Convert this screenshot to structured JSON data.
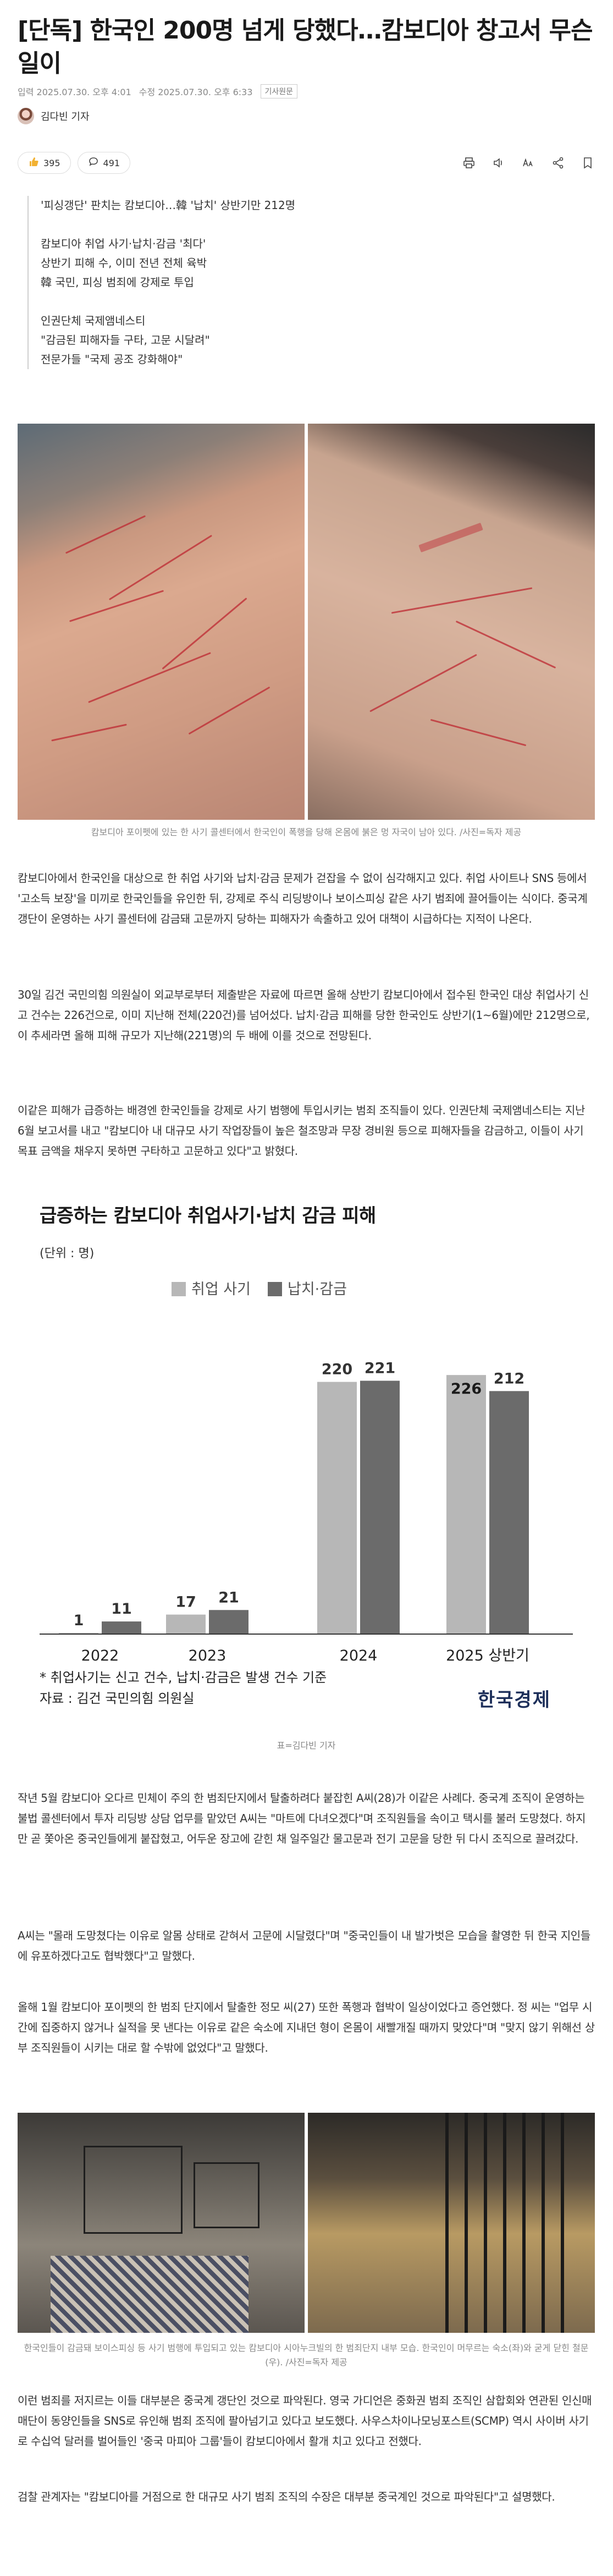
{
  "article": {
    "headline": "[단독] 한국인 200명 넘게 당했다…캄보디아 창고서 무슨 일이",
    "published": "입력 2025.07.30. 오후 4:01",
    "modified": "수정 2025.07.30. 오후 6:33",
    "original_link": "기사원문",
    "reporter": "김다빈 기자",
    "reactions": {
      "like_count": "395",
      "comment_count": "491"
    },
    "summary": [
      "'피싱갱단' 판치는 캄보디아…韓 '납치' 상반기만 212명",
      "",
      "캄보디아 취업 사기·납치·감금 '최다'",
      "상반기 피해 수, 이미 전년 전체 육박",
      "韓 국민, 피싱 범죄에 강제로 투입",
      "",
      "인권단체 국제앰네스티",
      "\"감금된 피해자들 구타, 고문 시달려\"",
      "전문가들 \"국제 공조 강화해야\""
    ],
    "photo1_caption": "캄보디아 포이펫에 있는 한 사기 콜센터에서 한국인이 폭행을 당해 온몸에 붉은 멍 자국이 남아 있다. /사진=독자 제공",
    "paragraphs": [
      "캄보디아에서 한국인을 대상으로 한 취업 사기와 납치·감금 문제가 걷잡을 수 없이 심각해지고 있다. 취업 사이트나 SNS 등에서 '고소득 보장'을 미끼로 한국인들을 유인한 뒤, 강제로 주식 리딩방이나 보이스피싱 같은 사기 범죄에 끌어들이는 식이다. 중국계 갱단이 운영하는 사기 콜센터에 감금돼 고문까지 당하는 피해자가 속출하고 있어 대책이 시급하다는 지적이 나온다.",
      "30일 김건 국민의힘 의원실이 외교부로부터 제출받은 자료에 따르면 올해 상반기 캄보디아에서 접수된 한국인 대상 취업사기 신고 건수는 226건으로, 이미 지난해 전체(220건)를 넘어섰다. 납치·감금 피해를 당한 한국인도 상반기(1~6월)에만 212명으로, 이 추세라면 올해 피해 규모가 지난해(221명)의 두 배에 이를 것으로 전망된다.",
      "이같은 피해가 급증하는 배경엔 한국인들을 강제로 사기 범행에 투입시키는 범죄 조직들이 있다. 인권단체 국제앰네스티는 지난 6월 보고서를 내고 \"캄보디아 내 대규모 사기 작업장들이 높은 철조망과 무장 경비원 등으로 피해자들을 감금하고, 이들이 사기 목표 금액을 채우지 못하면 구타하고 고문하고 있다\"고 밝혔다."
    ],
    "chart_credit": "표=김다빈 기자",
    "paragraphs2": [
      "작년 5월 캄보디아 오다르 민체이 주의 한 범죄단지에서 탈출하려다 붙잡힌 A씨(28)가 이같은 사례다. 중국계 조직이 운영하는 불법 콜센터에서 투자 리딩방 상담 업무를 맡았던 A씨는 \"마트에 다녀오겠다\"며 조직원들을 속이고 택시를 불러 도망쳤다. 하지만 곧 쫓아온 중국인들에게 붙잡혔고, 어두운 장고에 갇힌 채 일주일간 물고문과 전기 고문을 당한 뒤 다시 조직으로 끌려갔다.",
      "A씨는 \"몰래 도망쳤다는 이유로 알몸 상태로 갇혀서 고문에 시달렸다\"며 \"중국인들이 내 발가벗은 모습을 촬영한 뒤 한국 지인들에 유포하겠다고도 협박했다\"고 말했다.",
      "올해 1월 캄보디아 포이펫의 한 범죄 단지에서 탈출한 정모 씨(27) 또한 폭행과 협박이 일상이었다고 증언했다. 정 씨는 \"업무 시간에 집중하지 않거나 실적을 못 낸다는 이유로 같은 숙소에 지내던 형이 온몸이 새빨개질 때까지 맞았다\"며 \"맞지 않기 위해선 상부 조직원들이 시키는 대로 할 수밖에 없었다\"고 말했다."
    ],
    "photo2_caption": "한국인들이 감금돼 보이스피싱 등 사기 범행에 투입되고 있는 캄보디아 시아누크빌의 한 범죄단지 내부 모습. 한국인이 머무르는 숙소(좌)와 굳게 닫힌 철문(우). /사진=독자 제공",
    "paragraphs3": [
      "이런 범죄를 저지르는 이들 대부분은 중국계 갱단인 것으로 파악된다. 영국 가디언은 중화권 범죄 조직인 삼합회와 연관된 인신매매단이 동양인들을 SNS로 유인해 범죄 조직에 팔아넘기고 있다고 보도했다. 사우스차이나모닝포스트(SCMP) 역시 사이버 사기로 수십억 달러를 벌어들인 '중국 마피아 그룹'들이 캄보디아에서 활개 치고 있다고 전했다.",
      "검찰 관계자는 \"캄보디아를 거점으로 한 대규모 사기 범죄 조직의 수장은 대부분 중국계인 것으로 파악된다\"고 설명했다."
    ]
  },
  "chart_data": {
    "type": "bar",
    "title": "급증하는 캄보디아 취업사기·납치 감금 피해",
    "unit": "(단위 : 명)",
    "categories": [
      "2022",
      "2023",
      "2024",
      "2025 상반기"
    ],
    "series": [
      {
        "name": "취업 사기",
        "values": [
          1,
          17,
          220,
          226
        ],
        "color": "#b7b7b7"
      },
      {
        "name": "납치·감금",
        "values": [
          11,
          21,
          221,
          212
        ],
        "color": "#6b6b6b"
      }
    ],
    "ylim": [
      0,
      240
    ],
    "grid": false,
    "legend_position": "top",
    "notes": [
      "* 취업사기는 신고 건수, 납치·감금은 발생 건수 기준",
      "자료 : 김건 국민의힘 의원실"
    ],
    "brand": "한국경제"
  },
  "icons": [
    "like-icon",
    "comment-icon",
    "print-icon",
    "audio-icon",
    "font-size-icon",
    "share-icon",
    "bookmark-icon"
  ]
}
